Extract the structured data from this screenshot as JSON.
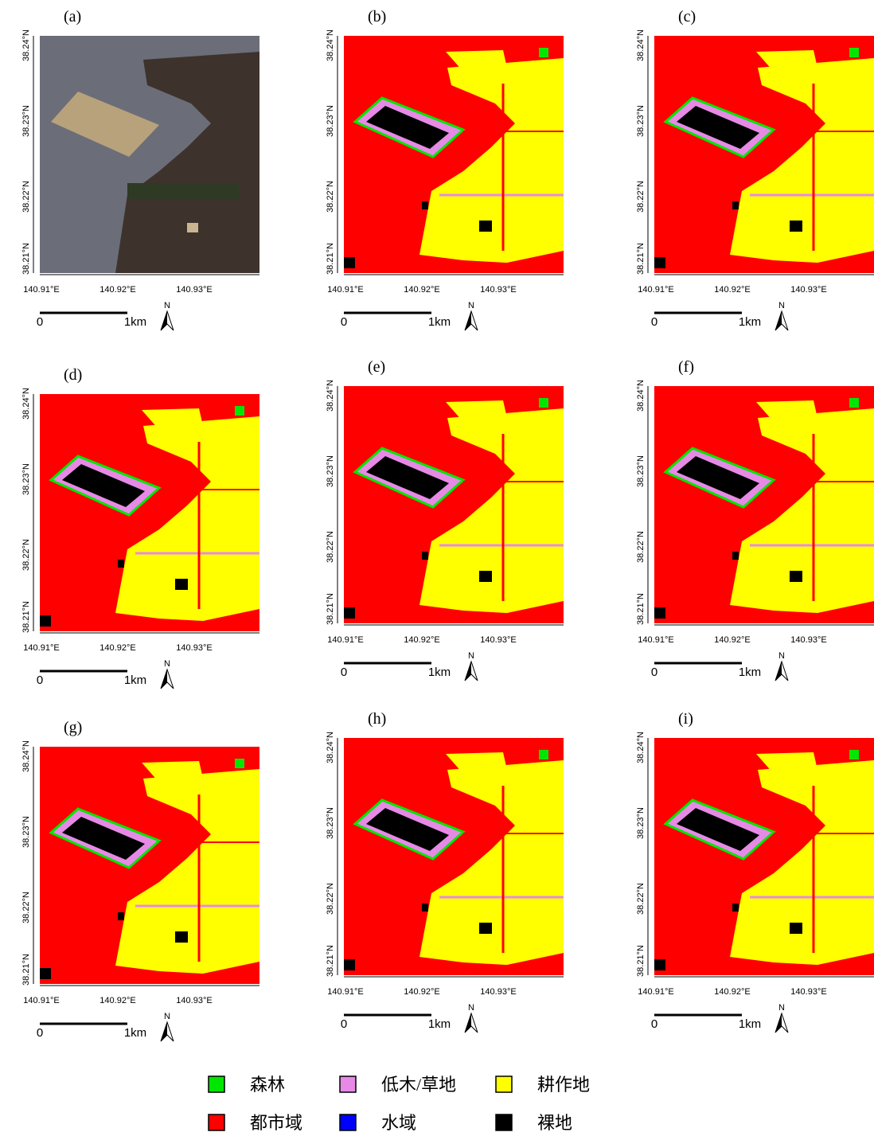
{
  "panels": [
    {
      "label": "(a)"
    },
    {
      "label": "(b)"
    },
    {
      "label": "(c)"
    },
    {
      "label": "(d)"
    },
    {
      "label": "(e)"
    },
    {
      "label": "(f)"
    },
    {
      "label": "(g)"
    },
    {
      "label": "(h)"
    },
    {
      "label": "(i)"
    }
  ],
  "axes": {
    "lat_ticks": [
      "38.21°N",
      "38.22°N",
      "38.23°N",
      "38.24°N"
    ],
    "lon_ticks": [
      "140.91°E",
      "140.92°E",
      "140.93°E"
    ]
  },
  "scale_bar": {
    "start": "0",
    "end": "1km"
  },
  "north": "N",
  "legend": [
    {
      "label": "森林",
      "color": "#00e600"
    },
    {
      "label": "低木/草地",
      "color": "#e68ae6"
    },
    {
      "label": "耕作地",
      "color": "#ffff00"
    },
    {
      "label": "都市域",
      "color": "#ff0000"
    },
    {
      "label": "水域",
      "color": "#0000ff"
    },
    {
      "label": "裸地",
      "color": "#000000"
    }
  ]
}
